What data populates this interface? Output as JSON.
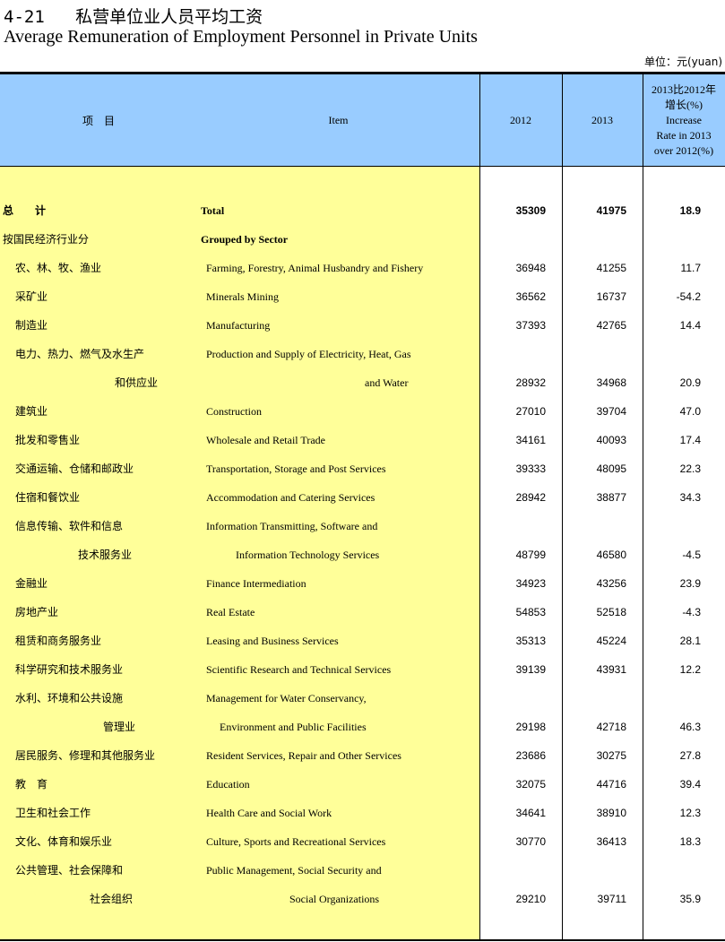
{
  "title": {
    "number": "4-21",
    "cn": "私营单位业人员平均工资",
    "en": "Average Remuneration of Employment Personnel in Private Units"
  },
  "unit": "单位：元(yuan)",
  "header": {
    "cn": "项　目",
    "en": "Item",
    "y2012": "2012",
    "y2013": "2013",
    "rate": "2013比2012年\n增长(%)\nIncrease\nRate in 2013\nover 2012(%)"
  },
  "colors": {
    "header_bg": "#99ccff",
    "item_bg": "#ffff99"
  },
  "rows": [
    {
      "cn": "总　　计",
      "en": "Total",
      "v2012": "35309",
      "v2013": "41975",
      "rate": "18.9",
      "bold": true
    },
    {
      "cn": "按国民经济行业分",
      "en": "Grouped by Sector",
      "v2012": "",
      "v2013": "",
      "rate": "",
      "bold": true
    },
    {
      "cn": "农、林、牧、渔业",
      "en": "Farming, Forestry, Animal Husbandry and Fishery",
      "v2012": "36948",
      "v2013": "41255",
      "rate": "11.7"
    },
    {
      "cn": "采矿业",
      "en": "Minerals Mining",
      "v2012": "36562",
      "v2013": "16737",
      "rate": "-54.2"
    },
    {
      "cn": "制造业",
      "en": "Manufacturing",
      "v2012": "37393",
      "v2013": "42765",
      "rate": "14.4"
    },
    {
      "cn": "电力、热力、燃气及水生产",
      "en": "Production and Supply of Electricity, Heat, Gas",
      "v2012": "",
      "v2013": "",
      "rate": ""
    },
    {
      "cn": "和供应业",
      "en": "and Water",
      "v2012": "28932",
      "v2013": "34968",
      "rate": "20.9"
    },
    {
      "cn": "建筑业",
      "en": "Construction",
      "v2012": "27010",
      "v2013": "39704",
      "rate": "47.0"
    },
    {
      "cn": "批发和零售业",
      "en": "Wholesale and Retail Trade",
      "v2012": "34161",
      "v2013": "40093",
      "rate": "17.4"
    },
    {
      "cn": "交通运输、仓储和邮政业",
      "en": "Transportation, Storage and Post Services",
      "v2012": "39333",
      "v2013": "48095",
      "rate": "22.3"
    },
    {
      "cn": "住宿和餐饮业",
      "en": "Accommodation and Catering Services",
      "v2012": "28942",
      "v2013": "38877",
      "rate": "34.3"
    },
    {
      "cn": "信息传输、软件和信息",
      "en": "Information Transmitting, Software and",
      "v2012": "",
      "v2013": "",
      "rate": ""
    },
    {
      "cn": "技术服务业",
      "en": "Information Technology Services",
      "v2012": "48799",
      "v2013": "46580",
      "rate": "-4.5"
    },
    {
      "cn": "金融业",
      "en": "Finance Intermediation",
      "v2012": "34923",
      "v2013": "43256",
      "rate": "23.9"
    },
    {
      "cn": "房地产业",
      "en": "Real Estate",
      "v2012": "54853",
      "v2013": "52518",
      "rate": "-4.3"
    },
    {
      "cn": "租赁和商务服务业",
      "en": "Leasing and Business Services",
      "v2012": "35313",
      "v2013": "45224",
      "rate": "28.1"
    },
    {
      "cn": "科学研究和技术服务业",
      "en": "Scientific Research and Technical Services",
      "v2012": "39139",
      "v2013": "43931",
      "rate": "12.2"
    },
    {
      "cn": "水利、环境和公共设施",
      "en": "Management for Water Conservancy,",
      "v2012": "",
      "v2013": "",
      "rate": ""
    },
    {
      "cn": "管理业",
      "en": "Environment and Public Facilities",
      "v2012": "29198",
      "v2013": "42718",
      "rate": "46.3"
    },
    {
      "cn": "居民服务、修理和其他服务业",
      "en": "Resident Services, Repair and Other Services",
      "v2012": "23686",
      "v2013": "30275",
      "rate": "27.8"
    },
    {
      "cn": "教　育",
      "en": "Education",
      "v2012": "32075",
      "v2013": "44716",
      "rate": "39.4"
    },
    {
      "cn": "卫生和社会工作",
      "en": "Health Care and Social Work",
      "v2012": "34641",
      "v2013": "38910",
      "rate": "12.3"
    },
    {
      "cn": "文化、体育和娱乐业",
      "en": "Culture, Sports and Recreational Services",
      "v2012": "30770",
      "v2013": "36413",
      "rate": "18.3"
    },
    {
      "cn": "公共管理、社会保障和",
      "en": "Public Management, Social Security and",
      "v2012": "",
      "v2013": "",
      "rate": ""
    },
    {
      "cn": "社会组织",
      "en": "Social Organizations",
      "v2012": "29210",
      "v2013": "39711",
      "rate": "35.9"
    }
  ]
}
